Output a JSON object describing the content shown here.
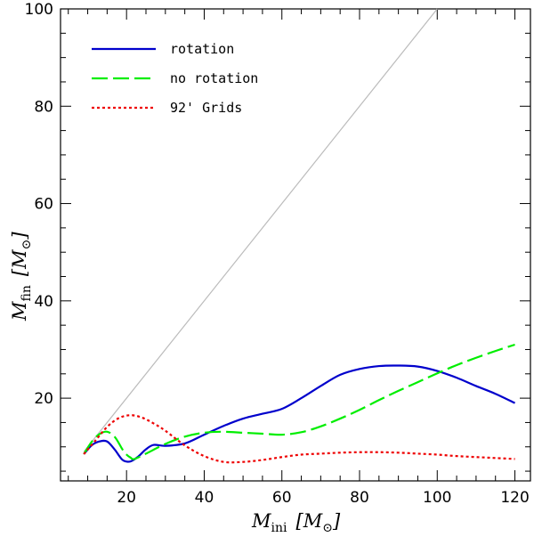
{
  "chart_data": {
    "type": "line",
    "title": "",
    "xlabel": {
      "main": "M",
      "sub": "ini",
      "unit_open": "[",
      "unit_symbol": "M",
      "unit_sub": "⊙",
      "unit_close": "]"
    },
    "ylabel": {
      "main": "M",
      "sub": "fin",
      "unit_open": "[",
      "unit_symbol": "M",
      "unit_sub": "⊙",
      "unit_close": "]"
    },
    "xlim": [
      3,
      124
    ],
    "ylim": [
      3,
      100
    ],
    "xticks_major": [
      20,
      40,
      60,
      80,
      100,
      120
    ],
    "yticks_major": [
      20,
      40,
      60,
      80,
      100
    ],
    "x_tick_labels": [
      "20",
      "40",
      "60",
      "80",
      "100",
      "120"
    ],
    "y_tick_labels": [
      "20",
      "40",
      "60",
      "80",
      "100"
    ],
    "grid": false,
    "legend_position": "top-left",
    "reference_line": {
      "name": "M_fin = M_ini",
      "x": [
        9,
        100
      ],
      "y": [
        9,
        100
      ],
      "color": "#bbbbbb"
    },
    "series": [
      {
        "name": "rotation",
        "color": "#0000cc",
        "dash": "solid",
        "x": [
          9,
          11,
          13,
          15,
          17,
          19,
          21,
          23,
          25,
          27,
          30,
          35,
          40,
          45,
          50,
          55,
          60,
          65,
          70,
          75,
          80,
          85,
          90,
          95,
          100,
          105,
          110,
          115,
          120
        ],
        "y": [
          8.5,
          10.3,
          11.1,
          11.1,
          9.4,
          7.3,
          7.0,
          8.0,
          9.5,
          10.4,
          10.2,
          10.7,
          12.5,
          14.3,
          15.8,
          16.8,
          17.8,
          20.0,
          22.5,
          24.8,
          26.0,
          26.6,
          26.7,
          26.5,
          25.6,
          24.2,
          22.5,
          20.9,
          19.0
        ]
      },
      {
        "name": "no rotation",
        "color": "#00ee00",
        "dash": "long-dash",
        "x": [
          9,
          11,
          13,
          15,
          17,
          19,
          20,
          21,
          22,
          25,
          30,
          35,
          40,
          45,
          50,
          55,
          60,
          65,
          70,
          75,
          80,
          85,
          90,
          95,
          100,
          105,
          110,
          115,
          120
        ],
        "y": [
          8.5,
          11.0,
          12.6,
          13.1,
          12.0,
          9.4,
          8.4,
          7.8,
          7.5,
          8.6,
          10.6,
          12.1,
          12.9,
          13.1,
          12.9,
          12.7,
          12.5,
          13.0,
          14.2,
          15.8,
          17.6,
          19.6,
          21.5,
          23.3,
          25.1,
          26.8,
          28.3,
          29.7,
          31.0
        ]
      },
      {
        "name": "92' Grids",
        "color": "#ee0000",
        "dash": "dotted",
        "x": [
          9,
          12,
          15,
          18,
          21,
          24,
          27,
          30,
          35,
          40,
          45,
          50,
          55,
          60,
          65,
          70,
          75,
          80,
          85,
          90,
          95,
          100,
          105,
          110,
          115,
          120
        ],
        "y": [
          8.5,
          11.3,
          14.1,
          15.9,
          16.5,
          16.0,
          14.8,
          13.3,
          10.3,
          8.1,
          6.9,
          6.9,
          7.3,
          7.9,
          8.4,
          8.6,
          8.8,
          8.9,
          8.9,
          8.8,
          8.6,
          8.4,
          8.1,
          7.9,
          7.7,
          7.5
        ]
      }
    ]
  }
}
